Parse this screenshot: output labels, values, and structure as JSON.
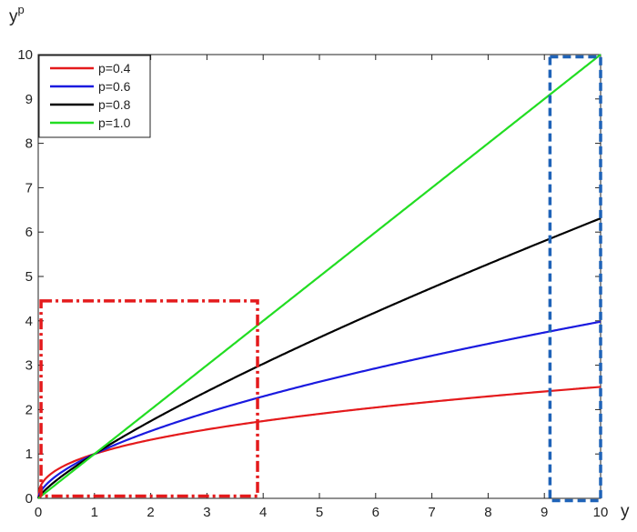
{
  "chart_data": {
    "type": "line",
    "title": "",
    "xlabel": "y",
    "ylabel": "y",
    "ylabel_superscript": "p",
    "xlim": [
      0,
      10
    ],
    "ylim": [
      0,
      10
    ],
    "xticks": [
      0,
      1,
      2,
      3,
      4,
      5,
      6,
      7,
      8,
      9,
      10
    ],
    "yticks": [
      0,
      1,
      2,
      3,
      4,
      5,
      6,
      7,
      8,
      9,
      10
    ],
    "grid": false,
    "legend_position": "top-left",
    "function": "y^p",
    "series": [
      {
        "name": "p=0.4",
        "p": 0.4,
        "color": "#e41a1c",
        "x": [
          0,
          0.1,
          0.5,
          1,
          2,
          3,
          4,
          5,
          6,
          7,
          8,
          9,
          10
        ],
        "values": [
          0,
          0.4,
          0.76,
          1,
          1.32,
          1.55,
          1.74,
          1.9,
          2.05,
          2.18,
          2.3,
          2.41,
          2.51
        ]
      },
      {
        "name": "p=0.6",
        "p": 0.6,
        "color": "#1a1adf",
        "x": [
          0,
          0.1,
          0.5,
          1,
          2,
          3,
          4,
          5,
          6,
          7,
          8,
          9,
          10
        ],
        "values": [
          0,
          0.25,
          0.66,
          1,
          1.52,
          1.93,
          2.3,
          2.63,
          2.93,
          3.21,
          3.48,
          3.74,
          3.98
        ]
      },
      {
        "name": "p=0.8",
        "p": 0.8,
        "color": "#000000",
        "x": [
          0,
          0.1,
          0.5,
          1,
          2,
          3,
          4,
          5,
          6,
          7,
          8,
          9,
          10
        ],
        "values": [
          0,
          0.16,
          0.57,
          1,
          1.74,
          2.41,
          3.03,
          3.62,
          4.19,
          4.74,
          5.28,
          5.8,
          6.31
        ]
      },
      {
        "name": "p=1.0",
        "p": 1.0,
        "color": "#22dd22",
        "x": [
          0,
          10
        ],
        "values": [
          0,
          10
        ]
      }
    ],
    "annotations": [
      {
        "type": "dash-dot-rectangle",
        "color": "#e41a1c",
        "x_range": [
          0.05,
          3.9
        ],
        "y_range": [
          0.05,
          4.45
        ]
      },
      {
        "type": "dashed-rectangle",
        "color": "#1f63b8",
        "x_range": [
          9.1,
          10
        ],
        "y_range": [
          -0.05,
          9.95
        ]
      }
    ]
  }
}
